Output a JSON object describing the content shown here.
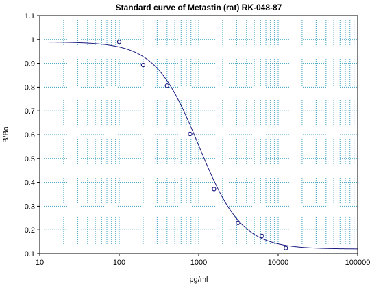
{
  "chart_data": {
    "type": "scatter",
    "title": "Standard curve of Metastin (rat) RK-048-87",
    "xlabel": "pg/ml",
    "ylabel": "B/Bo",
    "x_scale": "log",
    "xlim": [
      10,
      100000
    ],
    "ylim": [
      0.1,
      1.1
    ],
    "x_ticks": [
      "10",
      "100",
      "1000",
      "10000",
      "100000"
    ],
    "y_ticks": [
      "0.1",
      "0.2",
      "0.3",
      "0.4",
      "0.5",
      "0.6",
      "0.7",
      "0.8",
      "0.9",
      "1",
      "1.1"
    ],
    "grid": true,
    "points": [
      {
        "x": 100,
        "y": 0.99
      },
      {
        "x": 200,
        "y": 0.893
      },
      {
        "x": 400,
        "y": 0.806
      },
      {
        "x": 780,
        "y": 0.603
      },
      {
        "x": 1560,
        "y": 0.372
      },
      {
        "x": 3125,
        "y": 0.23
      },
      {
        "x": 6250,
        "y": 0.175
      },
      {
        "x": 12500,
        "y": 0.124
      }
    ],
    "fit_curve": {
      "model": "4PL",
      "top": 0.99,
      "bottom": 0.12,
      "ec50": 1000,
      "hill": 1.6
    },
    "colors": {
      "curve": "#1a1a80",
      "points": "#1a1a80",
      "grid": "#3aa0c0",
      "axes": "#000000"
    }
  }
}
